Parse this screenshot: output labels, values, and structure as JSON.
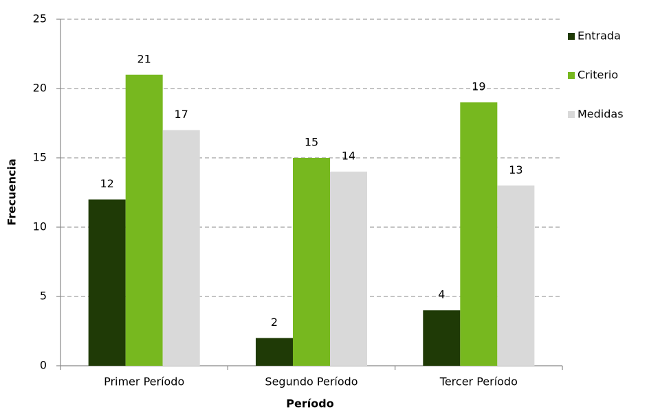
{
  "chart_data": {
    "type": "bar",
    "x_label": "Período",
    "y_label": "Frecuencia",
    "categories": [
      "Primer Período",
      "Segundo Período",
      "Tercer Período"
    ],
    "series": [
      {
        "name": "Entrada",
        "color": "#1f3a06",
        "values": [
          12,
          2,
          4
        ]
      },
      {
        "name": "Criterio",
        "color": "#77b81f",
        "values": [
          21,
          15,
          19
        ]
      },
      {
        "name": "Medidas",
        "color": "#d9d9d9",
        "values": [
          17,
          14,
          13
        ]
      }
    ],
    "ylim": [
      0,
      25
    ],
    "yticks": [
      0,
      5,
      10,
      15,
      20,
      25
    ],
    "grid": true,
    "legend": "right"
  }
}
